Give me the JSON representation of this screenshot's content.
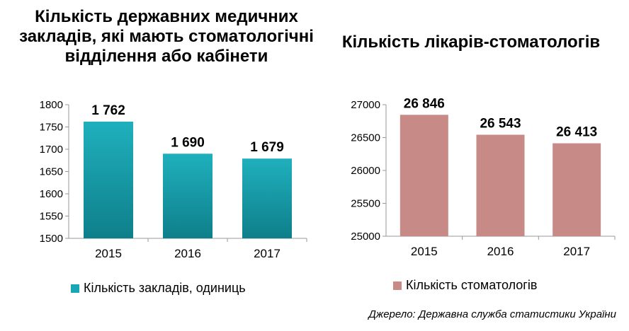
{
  "colors": {
    "left_bar": "#1aa7b4",
    "left_bar_dark": "#0e7f8a",
    "right_bar": "#c78a86",
    "axis": "#999999"
  },
  "chart_data": [
    {
      "type": "bar",
      "title": "Кількість державних медичних закладів, які мають стоматологічні відділення або кабінети",
      "categories": [
        "2015",
        "2016",
        "2017"
      ],
      "series": [
        {
          "name": "Кількість закладів, одиниць",
          "values": [
            1762,
            1690,
            1679
          ]
        }
      ],
      "data_labels": [
        "1 762",
        "1 690",
        "1 679"
      ],
      "ylim": [
        1500,
        1800
      ],
      "yticks": [
        1500,
        1550,
        1600,
        1650,
        1700,
        1750,
        1800
      ],
      "ytick_labels": [
        "1500",
        "1550",
        "1600",
        "1650",
        "1700",
        "1750",
        "1800"
      ],
      "grid": false,
      "legend_position": "bottom"
    },
    {
      "type": "bar",
      "title": "Кількість лікарів-стоматологів",
      "categories": [
        "2015",
        "2016",
        "2017"
      ],
      "series": [
        {
          "name": "Кількість стоматологів",
          "values": [
            26846,
            26543,
            26413
          ]
        }
      ],
      "data_labels": [
        "26 846",
        "26 543",
        "26 413"
      ],
      "ylim": [
        25000,
        27000
      ],
      "yticks": [
        25000,
        25500,
        26000,
        26500,
        27000
      ],
      "ytick_labels": [
        "25000",
        "25500",
        "26000",
        "26500",
        "27000"
      ],
      "grid": false,
      "legend_position": "bottom"
    }
  ],
  "source": "Джерело: Державна служба статистики України"
}
